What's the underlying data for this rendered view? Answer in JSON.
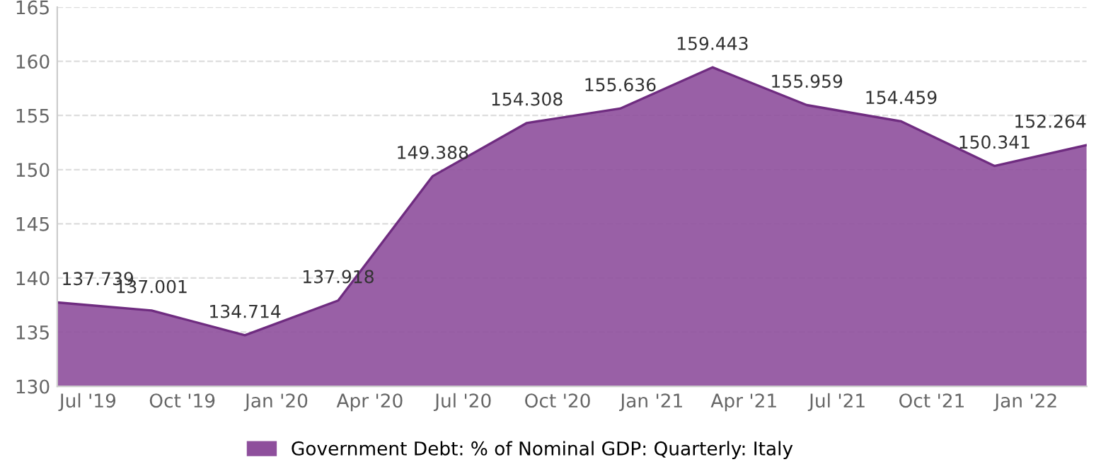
{
  "chart_data": {
    "type": "area",
    "x": [
      "2019-06",
      "2019-09",
      "2019-12",
      "2020-03",
      "2020-06",
      "2020-09",
      "2020-12",
      "2021-03",
      "2021-06",
      "2021-09",
      "2021-12",
      "2022-03"
    ],
    "series": [
      {
        "name": "Government Debt: % of Nominal GDP: Quarterly: Italy",
        "color": "#8e4f9c",
        "values": [
          137.739,
          137.001,
          134.714,
          137.918,
          149.388,
          154.308,
          155.636,
          159.443,
          155.959,
          154.459,
          150.341,
          152.264
        ]
      }
    ],
    "xlim": [
      "2019-06",
      "2022-03"
    ],
    "xticks": [
      {
        "value": "2019-07",
        "label": "Jul '19"
      },
      {
        "value": "2019-10",
        "label": "Oct '19"
      },
      {
        "value": "2020-01",
        "label": "Jan '20"
      },
      {
        "value": "2020-04",
        "label": "Apr '20"
      },
      {
        "value": "2020-07",
        "label": "Jul '20"
      },
      {
        "value": "2020-10",
        "label": "Oct '20"
      },
      {
        "value": "2021-01",
        "label": "Jan '21"
      },
      {
        "value": "2021-04",
        "label": "Apr '21"
      },
      {
        "value": "2021-07",
        "label": "Jul '21"
      },
      {
        "value": "2021-10",
        "label": "Oct '21"
      },
      {
        "value": "2022-01",
        "label": "Jan '22"
      }
    ],
    "ylim": [
      130,
      165
    ],
    "yticks": [
      130,
      135,
      140,
      145,
      150,
      155,
      160,
      165
    ],
    "grid": "y",
    "legend": "bottom",
    "data_labels": true
  }
}
